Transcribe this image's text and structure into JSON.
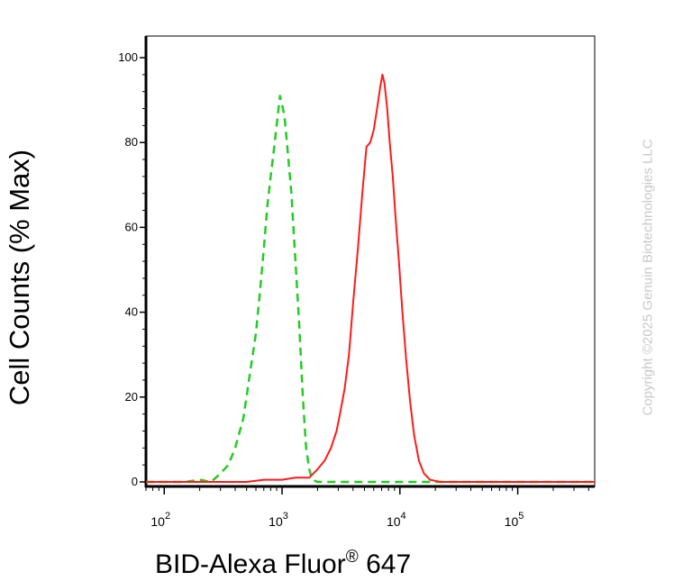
{
  "chart_data": {
    "type": "line",
    "title": "",
    "xlabel_main": "BID-Alexa Fluor",
    "xlabel_reg": "®",
    "xlabel_suffix": " 647",
    "ylabel": "Cell Counts (% Max)",
    "xscale": "log",
    "xlim": [
      70,
      450000
    ],
    "ylim": [
      0,
      105
    ],
    "yticks": [
      0,
      20,
      40,
      60,
      80,
      100
    ],
    "xticks": [
      {
        "value": 100,
        "base": "10",
        "exp": "2"
      },
      {
        "value": 1000,
        "base": "10",
        "exp": "3"
      },
      {
        "value": 10000,
        "base": "10",
        "exp": "4"
      },
      {
        "value": 100000,
        "base": "10",
        "exp": "5"
      }
    ],
    "grid": false,
    "series": [
      {
        "color": "#22cc22",
        "dash": true,
        "points": [
          [
            70,
            0
          ],
          [
            150,
            0
          ],
          [
            200,
            0.5
          ],
          [
            250,
            0
          ],
          [
            300,
            2
          ],
          [
            350,
            4
          ],
          [
            400,
            8
          ],
          [
            470,
            15
          ],
          [
            530,
            25
          ],
          [
            600,
            35
          ],
          [
            650,
            45
          ],
          [
            700,
            55
          ],
          [
            750,
            65
          ],
          [
            800,
            72
          ],
          [
            850,
            78
          ],
          [
            900,
            84
          ],
          [
            960,
            91
          ],
          [
            1000,
            89
          ],
          [
            1050,
            86
          ],
          [
            1100,
            80
          ],
          [
            1200,
            68
          ],
          [
            1300,
            52
          ],
          [
            1400,
            37
          ],
          [
            1500,
            20
          ],
          [
            1600,
            8
          ],
          [
            1700,
            3
          ],
          [
            1800,
            0.5
          ],
          [
            2000,
            0
          ],
          [
            450000,
            0
          ]
        ]
      },
      {
        "color": "#ff1a1a",
        "dash": false,
        "points": [
          [
            70,
            0
          ],
          [
            300,
            0
          ],
          [
            500,
            0
          ],
          [
            700,
            0.5
          ],
          [
            1000,
            0.5
          ],
          [
            1300,
            1
          ],
          [
            1700,
            1
          ],
          [
            2000,
            3
          ],
          [
            2300,
            5
          ],
          [
            2600,
            8
          ],
          [
            2900,
            12
          ],
          [
            3100,
            16
          ],
          [
            3400,
            22
          ],
          [
            3700,
            30
          ],
          [
            4000,
            42
          ],
          [
            4400,
            55
          ],
          [
            4800,
            68
          ],
          [
            5200,
            79
          ],
          [
            5600,
            80
          ],
          [
            6000,
            83
          ],
          [
            6400,
            88
          ],
          [
            6800,
            93
          ],
          [
            7100,
            96
          ],
          [
            7400,
            94
          ],
          [
            7800,
            88
          ],
          [
            8200,
            80
          ],
          [
            8700,
            72
          ],
          [
            9200,
            62
          ],
          [
            9800,
            52
          ],
          [
            10500,
            40
          ],
          [
            11300,
            29
          ],
          [
            12200,
            19
          ],
          [
            13200,
            11
          ],
          [
            14500,
            5
          ],
          [
            16000,
            2
          ],
          [
            18000,
            0.5
          ],
          [
            22000,
            0
          ],
          [
            450000,
            0
          ]
        ]
      }
    ]
  },
  "watermark": "Copyright ©2025 Genuin Biotechnologies LLC"
}
